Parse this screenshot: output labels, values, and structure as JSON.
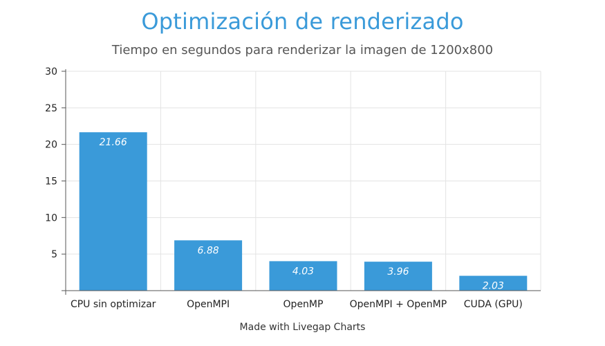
{
  "chart_data": {
    "type": "bar",
    "title": "Optimización de renderizado",
    "subtitle": "Tiempo en segundos para renderizar la imagen de 1200x800",
    "categories": [
      "CPU sin optimizar",
      "OpenMPI",
      "OpenMP",
      "OpenMPI + OpenMP",
      "CUDA (GPU)"
    ],
    "values": [
      21.66,
      6.88,
      4.03,
      3.96,
      2.03
    ],
    "data_labels": [
      "21.66",
      "6.88",
      "4.03",
      "3.96",
      "2.03"
    ],
    "ylim": [
      0,
      30
    ],
    "yticks": [
      5,
      10,
      15,
      20,
      25,
      30
    ],
    "xlabel": "",
    "ylabel": "",
    "grid": true,
    "bar_color": "#3a9ad9"
  },
  "footer": "Made with Livegap Charts"
}
